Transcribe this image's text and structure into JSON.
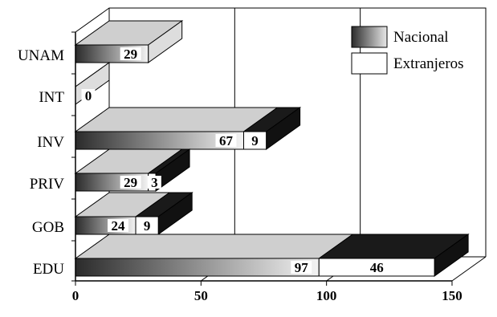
{
  "chart_data": {
    "type": "bar",
    "orientation": "horizontal",
    "stacked": true,
    "style": "3d",
    "categories": [
      "UNAM",
      "INT",
      "INV",
      "PRIV",
      "GOB",
      "EDU"
    ],
    "series": [
      {
        "name": "Nacional",
        "values": [
          29,
          0,
          67,
          29,
          24,
          97
        ],
        "color": "#3a3a3a"
      },
      {
        "name": "Extranjeros",
        "values": [
          0,
          0,
          9,
          3,
          9,
          46
        ],
        "color": "#ffffff"
      }
    ],
    "xlim": [
      0,
      150
    ],
    "xticks": [
      0,
      50,
      100,
      150
    ],
    "legend": "top-right",
    "grid": true,
    "title": "",
    "xlabel": "",
    "ylabel": ""
  }
}
